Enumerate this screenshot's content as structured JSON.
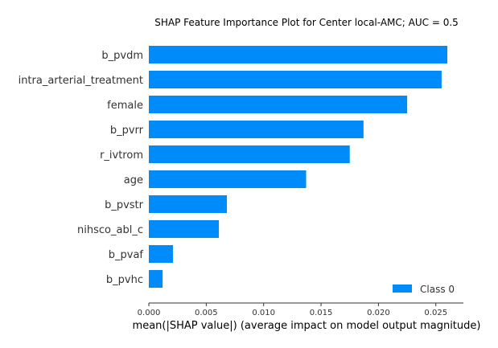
{
  "chart_data": {
    "type": "bar",
    "orientation": "horizontal",
    "title": "SHAP Feature Importance Plot for Center local-AMC; AUC = 0.5",
    "xlabel": "mean(|SHAP value|) (average impact on model output magnitude)",
    "ylabel": "",
    "categories": [
      "b_pvdm",
      "intra_arterial_treatment",
      "female",
      "b_pvrr",
      "r_ivtrom",
      "age",
      "b_pvstr",
      "nihsco_abl_c",
      "b_pvaf",
      "b_pvhc"
    ],
    "series": [
      {
        "name": "Class 0",
        "color": "#008bfb",
        "values": [
          0.026,
          0.0255,
          0.0225,
          0.0187,
          0.0175,
          0.0137,
          0.0068,
          0.0061,
          0.0021,
          0.0012
        ]
      }
    ],
    "xlim": [
      0,
      0.0274
    ],
    "xticks": [
      "0.000",
      "0.005",
      "0.010",
      "0.015",
      "0.020",
      "0.025"
    ],
    "grid": false,
    "legend_position": "bottom-right"
  }
}
